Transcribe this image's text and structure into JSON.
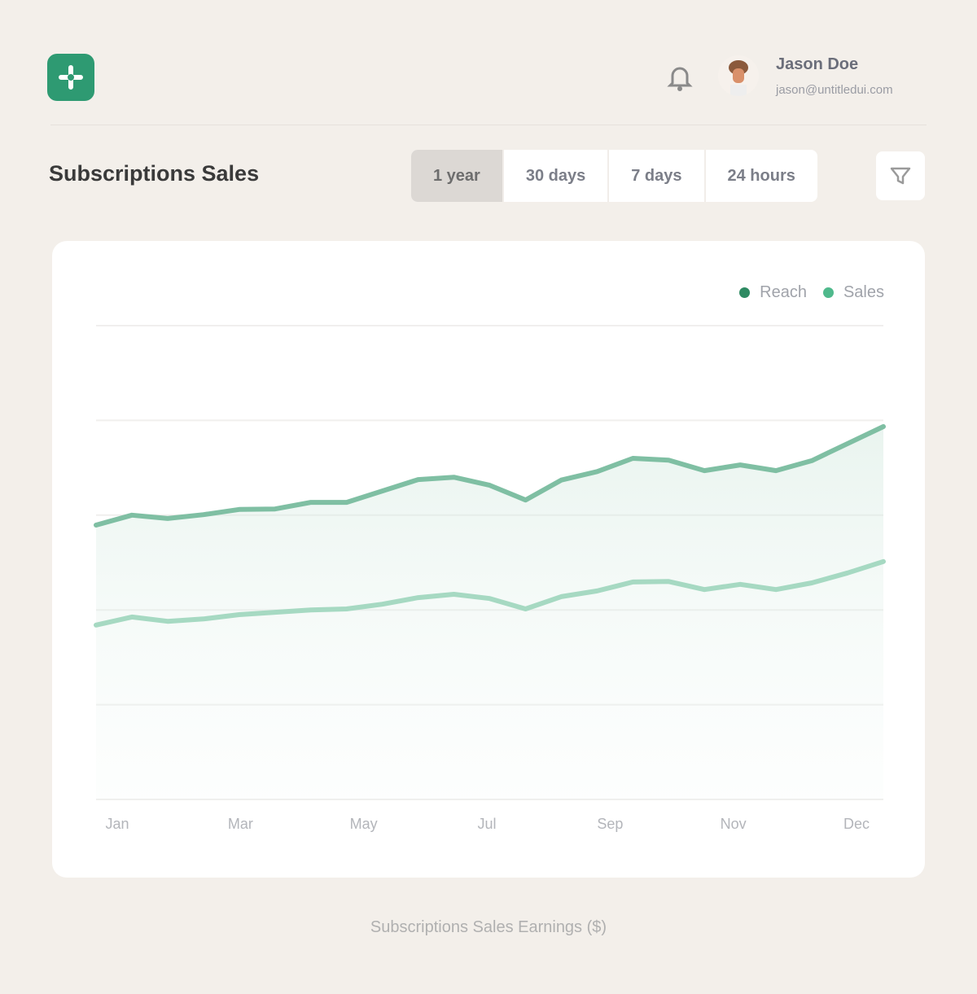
{
  "header": {
    "logo_icon": "plus-cross-logo-icon",
    "notification_icon": "bell-icon",
    "user": {
      "name": "Jason Doe",
      "email": "jason@untitledui.com"
    }
  },
  "page": {
    "title": "Subscriptions Sales",
    "filter_icon": "filter-icon"
  },
  "range_tabs": [
    {
      "label": "1 year",
      "active": true
    },
    {
      "label": "30 days",
      "active": false
    },
    {
      "label": "7 days",
      "active": false
    },
    {
      "label": "24 hours",
      "active": false
    }
  ],
  "chart_data": {
    "type": "area",
    "title": "",
    "xlabel": "",
    "ylabel": "",
    "caption": "Subscriptions Sales Earnings ($)",
    "x_tick_labels": [
      "Jan",
      "Mar",
      "May",
      "Jul",
      "Sep",
      "Nov",
      "Dec"
    ],
    "xlim": [
      1,
      12
    ],
    "ylim": [
      0,
      100
    ],
    "grid": true,
    "legend_position": "top-right",
    "series": [
      {
        "name": "Reach",
        "color": "#7fbfa3",
        "values": [
          57.9,
          60.0,
          59.3,
          60.1,
          61.2,
          61.3,
          62.7,
          62.7,
          65.1,
          67.5,
          68.0,
          66.3,
          63.2,
          67.4,
          69.2,
          72.0,
          71.6,
          69.4,
          70.6,
          69.4,
          71.5,
          75.1,
          78.7
        ]
      },
      {
        "name": "Sales",
        "color": "#a6d9c2",
        "values": [
          36.8,
          38.5,
          37.6,
          38.1,
          39.0,
          39.5,
          40.0,
          40.2,
          41.2,
          42.6,
          43.3,
          42.4,
          40.2,
          42.8,
          44.0,
          45.9,
          46.0,
          44.3,
          45.4,
          44.3,
          45.7,
          47.8,
          50.2
        ]
      }
    ],
    "legend_colors": {
      "Reach": "#2e8a62",
      "Sales": "#4fb98c"
    }
  }
}
